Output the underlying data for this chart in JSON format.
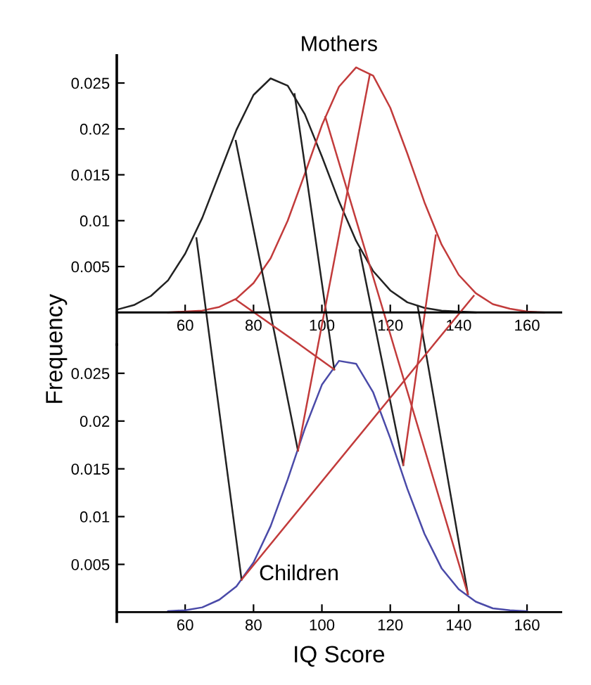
{
  "chart_data": [
    {
      "type": "line",
      "title": "Mothers",
      "ylabel": "Frequency",
      "xlim": [
        40,
        170
      ],
      "ylim": [
        -0.0035,
        0.028
      ],
      "xticks": [
        60,
        80,
        100,
        120,
        140,
        160
      ],
      "yticks": [
        0.005,
        0.01,
        0.015,
        0.02,
        0.025
      ],
      "grid": false,
      "line_style": "solid",
      "series": [
        {
          "color": "#222222",
          "x": [
            40,
            45,
            50,
            55,
            60,
            65,
            70,
            75,
            80,
            85,
            90,
            95,
            100,
            105,
            110,
            115,
            120,
            125,
            130,
            135,
            140,
            145
          ],
          "values": [
            0.0003,
            0.0008,
            0.0018,
            0.0035,
            0.0064,
            0.0103,
            0.0151,
            0.0199,
            0.0237,
            0.0255,
            0.0247,
            0.0216,
            0.017,
            0.0121,
            0.0078,
            0.0045,
            0.0024,
            0.0011,
            0.0005,
            0.0002,
            0.0001,
            0.0
          ]
        },
        {
          "color": "#c23b3b",
          "x": [
            55,
            60,
            65,
            70,
            75,
            80,
            85,
            90,
            95,
            100,
            105,
            110,
            115,
            120,
            125,
            130,
            135,
            140,
            145,
            150,
            155,
            160,
            165
          ],
          "values": [
            0.0,
            0.0001,
            0.0002,
            0.0006,
            0.0015,
            0.0032,
            0.0059,
            0.01,
            0.0151,
            0.0204,
            0.0246,
            0.0267,
            0.0258,
            0.0223,
            0.0173,
            0.012,
            0.0074,
            0.0041,
            0.0021,
            0.0009,
            0.0004,
            0.0001,
            0.0
          ]
        },
        {
          "color": "#222222",
          "x": [
            63.3,
            67.4
          ],
          "values": [
            0.0081,
            -0.0035
          ]
        },
        {
          "color": "#222222",
          "x": [
            74.8,
            86.8
          ],
          "values": [
            0.0187,
            -0.0035
          ]
        },
        {
          "color": "#222222",
          "x": [
            92,
            102.6
          ],
          "values": [
            0.0238,
            -0.0035
          ]
        },
        {
          "color": "#222222",
          "x": [
            111,
            116.6
          ],
          "values": [
            0.0068,
            -0.0035
          ]
        },
        {
          "color": "#222222",
          "x": [
            128,
            130
          ],
          "values": [
            0.0007,
            -0.0035
          ]
        },
        {
          "color": "#c23b3b",
          "x": [
            74.8,
            93.5
          ],
          "values": [
            0.0014,
            -0.0035
          ]
        },
        {
          "color": "#c23b3b",
          "x": [
            114,
            98.9
          ],
          "values": [
            0.0259,
            -0.0035
          ]
        },
        {
          "color": "#c23b3b",
          "x": [
            101,
            120.9
          ],
          "values": [
            0.0213,
            -0.0035
          ]
        },
        {
          "color": "#c23b3b",
          "x": [
            133.3,
            128.8
          ],
          "values": [
            0.0084,
            -0.0035
          ]
        },
        {
          "color": "#c23b3b",
          "x": [
            144.4,
            132.7
          ],
          "values": [
            0.0018,
            -0.0035
          ]
        }
      ]
    },
    {
      "type": "line",
      "title": "Children",
      "xlabel": "IQ Score",
      "xlim": [
        40,
        170
      ],
      "ylim": [
        -0.001,
        0.028
      ],
      "xticks": [
        60,
        80,
        100,
        120,
        140,
        160
      ],
      "yticks": [
        0.005,
        0.01,
        0.015,
        0.02,
        0.025
      ],
      "grid": false,
      "line_style": "solid",
      "series": [
        {
          "color": "#4a4aa8",
          "x": [
            55,
            60,
            65,
            70,
            75,
            80,
            85,
            90,
            95,
            100,
            105,
            110,
            115,
            120,
            125,
            130,
            135,
            140,
            145,
            150,
            155,
            160
          ],
          "values": [
            0.0001,
            0.0002,
            0.0005,
            0.0013,
            0.0027,
            0.0052,
            0.009,
            0.0139,
            0.0192,
            0.0238,
            0.0263,
            0.026,
            0.023,
            0.0182,
            0.0129,
            0.0082,
            0.0046,
            0.0024,
            0.0011,
            0.0004,
            0.0002,
            0.0001
          ]
        },
        {
          "color": "#222222",
          "x": [
            67.4,
            76.5
          ],
          "values": [
            0.028,
            0.0034
          ]
        },
        {
          "color": "#222222",
          "x": [
            86.8,
            93
          ],
          "values": [
            0.028,
            0.0169
          ]
        },
        {
          "color": "#222222",
          "x": [
            102.6,
            103.6
          ],
          "values": [
            0.028,
            0.0254
          ]
        },
        {
          "color": "#222222",
          "x": [
            116.6,
            123.8
          ],
          "values": [
            0.028,
            0.0154
          ]
        },
        {
          "color": "#222222",
          "x": [
            130,
            142.7
          ],
          "values": [
            0.028,
            0.0019
          ]
        },
        {
          "color": "#c23b3b",
          "x": [
            93.5,
            103.6
          ],
          "values": [
            0.028,
            0.0254
          ]
        },
        {
          "color": "#c23b3b",
          "x": [
            98.9,
            93
          ],
          "values": [
            0.028,
            0.0169
          ]
        },
        {
          "color": "#c23b3b",
          "x": [
            120.9,
            142.7
          ],
          "values": [
            0.028,
            0.0019
          ]
        },
        {
          "color": "#c23b3b",
          "x": [
            128.8,
            123.8
          ],
          "values": [
            0.028,
            0.0154
          ]
        },
        {
          "color": "#c23b3b",
          "x": [
            132.7,
            76.5
          ],
          "values": [
            0.028,
            0.0034
          ]
        }
      ]
    }
  ]
}
